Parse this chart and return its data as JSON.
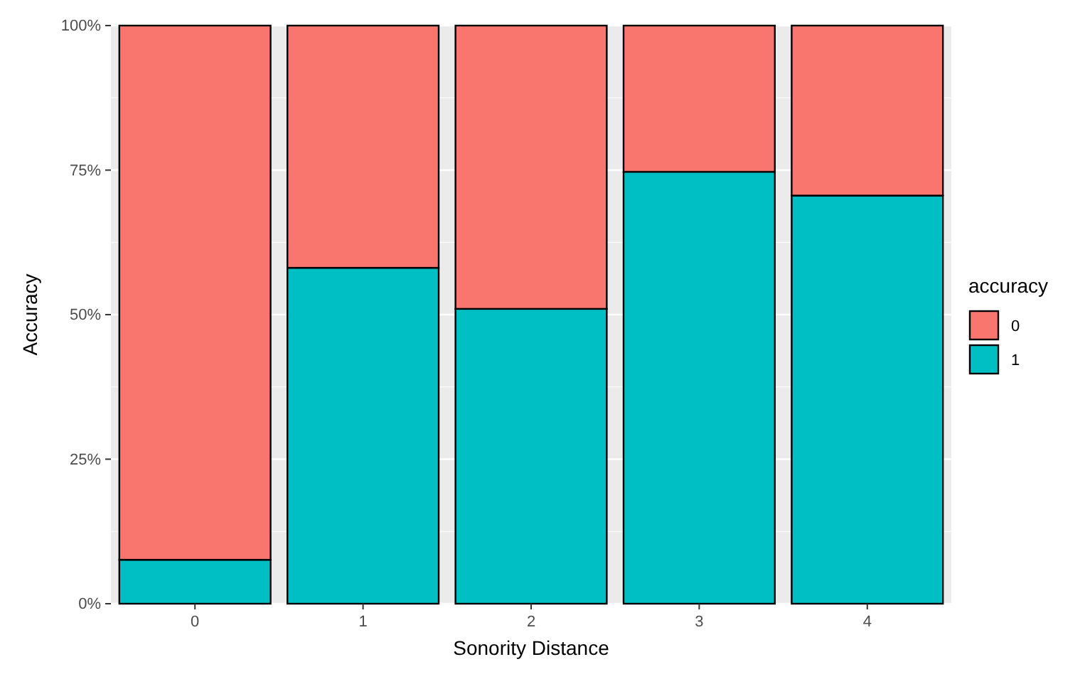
{
  "chart_data": {
    "type": "bar",
    "stacked": true,
    "xlabel": "Sonority Distance",
    "ylabel": "Accuracy",
    "legend_title": "accuracy",
    "legend": "right",
    "grid": true,
    "categories": [
      "0",
      "1",
      "2",
      "3",
      "4"
    ],
    "series": [
      {
        "name": "1",
        "color": "#00bfc4",
        "values": [
          7.6,
          58.1,
          51,
          74.7,
          70.6
        ]
      },
      {
        "name": "0",
        "color": "#f8766d",
        "values": [
          92.4,
          41.9,
          49,
          25.3,
          29.4
        ]
      }
    ],
    "ylim": [
      0,
      100
    ],
    "yticks": [
      {
        "value": 0,
        "label": "0%"
      },
      {
        "value": 25,
        "label": "25%"
      },
      {
        "value": 50,
        "label": "50%"
      },
      {
        "value": 75,
        "label": "75%"
      },
      {
        "value": 100,
        "label": "100%"
      }
    ]
  }
}
